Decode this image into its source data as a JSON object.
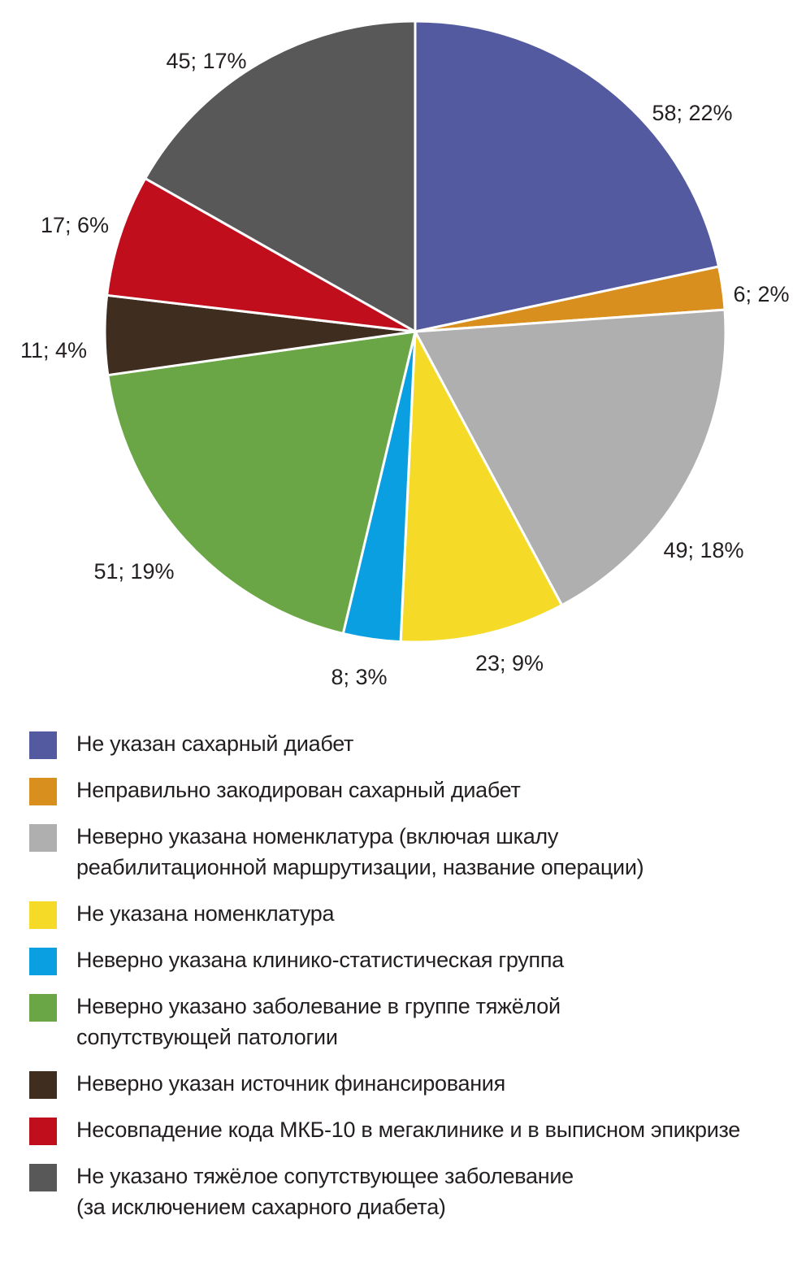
{
  "chart_data": {
    "type": "pie",
    "title": "",
    "start_angle_deg": 0,
    "direction": "clockwise",
    "slices": [
      {
        "label": "Не указан сахарный диабет",
        "value": 58,
        "percent": 22,
        "text": "58; 22%",
        "color": "#535a9f"
      },
      {
        "label": "Неправильно закодирован сахарный диабет",
        "value": 6,
        "percent": 2,
        "text": "6; 2%",
        "color": "#d88f1e"
      },
      {
        "label": "Неверно указана номенклатура (включая шкалу реабилитационной маршрутизации, название операции)",
        "value": 49,
        "percent": 18,
        "text": "49; 18%",
        "color": "#afafaf"
      },
      {
        "label": "Не указана номенклатура",
        "value": 23,
        "percent": 9,
        "text": "23; 9%",
        "color": "#f5db27"
      },
      {
        "label": "Неверно указана клинико-статистическая группа",
        "value": 8,
        "percent": 3,
        "text": "8; 3%",
        "color": "#0a9fe0"
      },
      {
        "label": "Неверно указано заболевание в группе тяжёлой сопутствующей патологии",
        "value": 51,
        "percent": 19,
        "text": "51; 19%",
        "color": "#6aa645"
      },
      {
        "label": "Неверно указан источник финансирования",
        "value": 11,
        "percent": 4,
        "text": "11; 4%",
        "color": "#3f2d20"
      },
      {
        "label": "Несовпадение кода МКБ-10 в мегаклинике и в выписном эпикризе",
        "value": 17,
        "percent": 6,
        "text": "17; 6%",
        "color": "#c10e1c"
      },
      {
        "label": "Не указано тяжёлое сопутствующее заболевание (за исключением сахарного диабета)",
        "value": 45,
        "percent": 17,
        "text": "45; 17%",
        "color": "#585858"
      }
    ]
  },
  "legend": {
    "items": [
      {
        "line1": "Не указан сахарный диабет",
        "line2": "",
        "color": "#535a9f"
      },
      {
        "line1": "Неправильно закодирован сахарный диабет",
        "line2": "",
        "color": "#d88f1e"
      },
      {
        "line1": "Неверно указана номенклатура (включая шкалу",
        "line2": "реабилитационной маршрутизации, название операции)",
        "color": "#afafaf"
      },
      {
        "line1": "Не указана номенклатура",
        "line2": "",
        "color": "#f5db27"
      },
      {
        "line1": "Неверно указана клинико-статистическая группа",
        "line2": "",
        "color": "#0a9fe0"
      },
      {
        "line1": "Неверно указано заболевание в группе тяжёлой",
        "line2": "сопутствующей патологии",
        "color": "#6aa645"
      },
      {
        "line1": "Неверно указан источник финансирования",
        "line2": "",
        "color": "#3f2d20"
      },
      {
        "line1": "Несовпадение кода МКБ-10 в мегаклинике и в выписном эпикризе",
        "line2": "",
        "color": "#c10e1c"
      },
      {
        "line1": "Не указано тяжёлое сопутствующее заболевание",
        "line2": "(за исключением сахарного диабета)",
        "color": "#585858"
      }
    ]
  }
}
